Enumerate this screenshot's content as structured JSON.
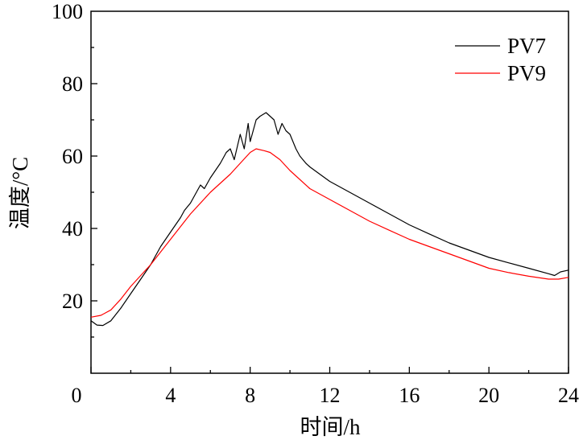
{
  "chart_data": {
    "type": "line",
    "title": "",
    "xlabel": "时间/h",
    "ylabel": "温度/°C",
    "xlim": [
      0,
      24
    ],
    "ylim": [
      0,
      100
    ],
    "xticks": [
      0,
      4,
      8,
      12,
      16,
      20,
      24
    ],
    "yticks": [
      20,
      40,
      60,
      80,
      100
    ],
    "x_origin_label": "0",
    "grid": false,
    "legend_placement": "top-right",
    "series": [
      {
        "name": "PV7",
        "color": "#000000",
        "x": [
          0,
          0.3,
          0.6,
          1,
          1.5,
          2,
          2.5,
          3,
          3.5,
          4,
          4.5,
          4.7,
          5,
          5.5,
          5.7,
          6,
          6.5,
          6.8,
          7,
          7.2,
          7.5,
          7.7,
          7.9,
          8,
          8.3,
          8.5,
          8.8,
          9,
          9.2,
          9.4,
          9.6,
          9.8,
          10,
          10.3,
          10.5,
          10.8,
          11,
          11.5,
          12,
          13,
          14,
          15,
          16,
          17,
          18,
          19,
          20,
          21,
          22,
          23,
          23.3,
          23.6,
          24
        ],
        "y": [
          14.5,
          13.3,
          13.2,
          14.5,
          18,
          22,
          26,
          30,
          35,
          39,
          43,
          45,
          47,
          52,
          51,
          54,
          58,
          61,
          62,
          59,
          66,
          62,
          69,
          64,
          70,
          71,
          72,
          71,
          70,
          66,
          69,
          67,
          66,
          62,
          60,
          58,
          57,
          55,
          53,
          50,
          47,
          44,
          41,
          38.5,
          36,
          34,
          32,
          30.5,
          29,
          27.5,
          27,
          28,
          28.5
        ]
      },
      {
        "name": "PV9",
        "color": "#ff0000",
        "x": [
          0,
          0.5,
          1,
          1.5,
          2,
          3,
          4,
          5,
          6,
          7,
          7.5,
          8,
          8.3,
          8.7,
          9,
          9.5,
          10,
          11,
          12,
          13,
          14,
          15,
          16,
          17,
          18,
          19,
          20,
          21,
          22,
          23,
          23.5,
          24
        ],
        "y": [
          15.5,
          16,
          17.5,
          20.5,
          24,
          30,
          37,
          44,
          50,
          55,
          58,
          61,
          62,
          61.5,
          61,
          59,
          56,
          51,
          48,
          45,
          42,
          39.5,
          37,
          35,
          33,
          31,
          29,
          27.8,
          26.8,
          26,
          26,
          26.5
        ]
      }
    ]
  }
}
